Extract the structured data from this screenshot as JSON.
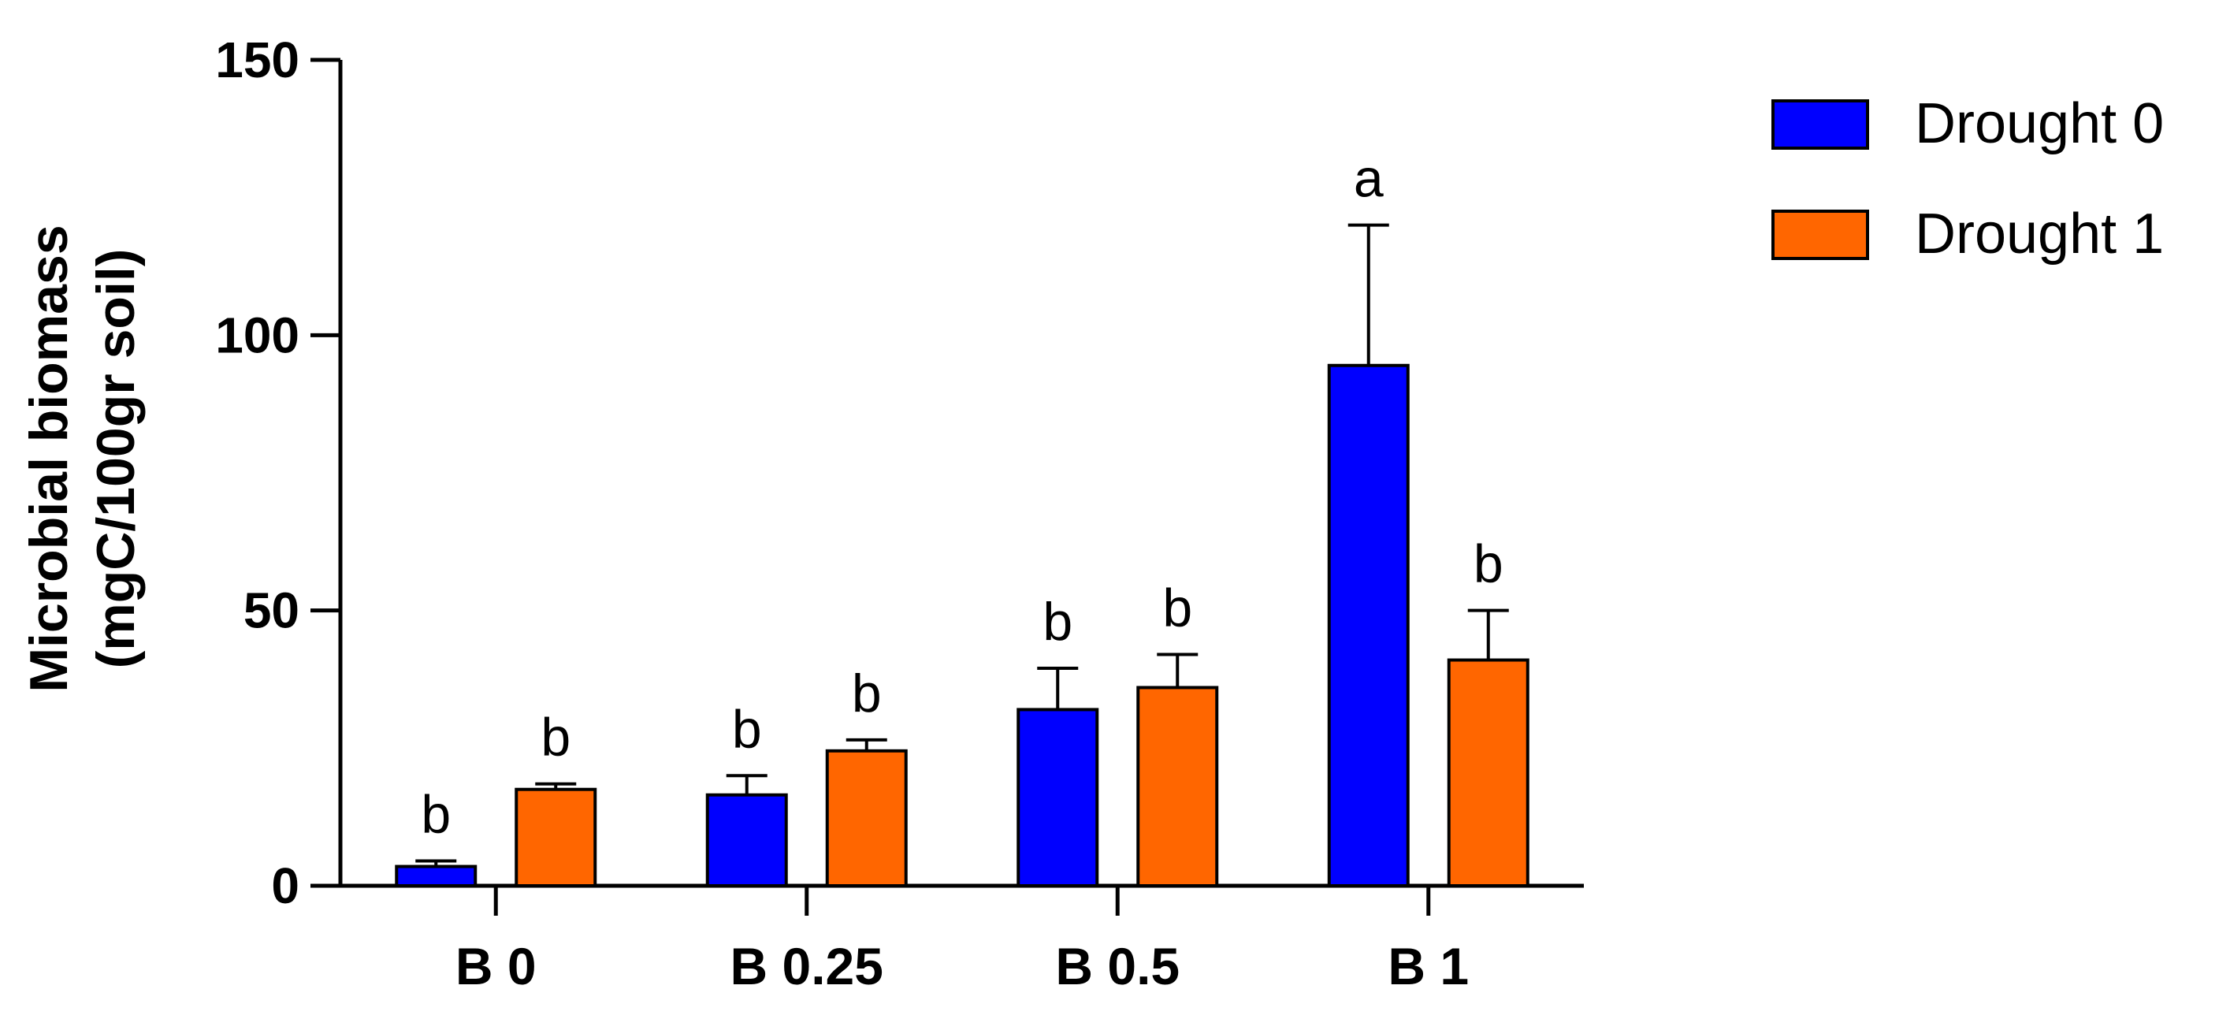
{
  "chart_data": {
    "type": "bar",
    "categories": [
      "B 0",
      "B 0.25",
      "B 0.5",
      "B 1"
    ],
    "series": [
      {
        "name": "Drought 0",
        "color": "#0000ff",
        "values": [
          3.5,
          16.5,
          32,
          94.5
        ],
        "errors": [
          1,
          3.5,
          7.5,
          25.5
        ],
        "labels": [
          "b",
          "b",
          "b",
          "a"
        ]
      },
      {
        "name": "Drought 1",
        "color": "#ff6600",
        "values": [
          17.5,
          24.5,
          36,
          41
        ],
        "errors": [
          1,
          2,
          6,
          9
        ],
        "labels": [
          "b",
          "b",
          "b",
          "b"
        ]
      }
    ],
    "ylabel_line1": "Microbial biomass",
    "ylabel_line2": "(mgC/100gr soil)",
    "xlabel": "",
    "ylim": [
      0,
      150
    ],
    "yticks": [
      0,
      50,
      100,
      150
    ],
    "legend_position": "top-right",
    "grid": false
  }
}
